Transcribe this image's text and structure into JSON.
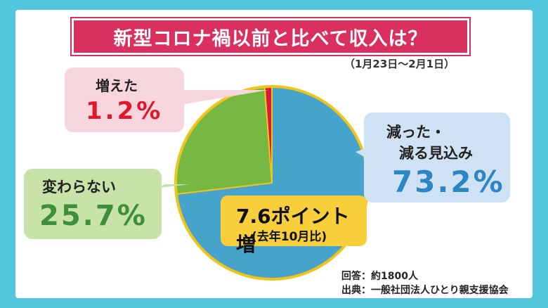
{
  "title": "新型コロナ禍以前と比べて収入は？",
  "period": "（1月23日〜2月1日）",
  "note": {
    "main": "7.6ポイント増",
    "sub": "(去年10月比)"
  },
  "footer": {
    "respondents": "回答：約1800人",
    "source": "出典：一般社団法人ひとり親支援協会"
  },
  "colors": {
    "decreased": "#46a4cc",
    "same": "#77b843",
    "increased": "#d8193a",
    "rim": "#f0c419"
  },
  "chart_data": {
    "type": "pie",
    "title": "新型コロナ禍以前と比べて収入は？",
    "categories": [
      "減った・減る見込み",
      "変わらない",
      "増えた"
    ],
    "values": [
      73.2,
      25.7,
      1.2
    ],
    "value_labels": [
      "73.2%",
      "25.7%",
      "1.2%"
    ],
    "labels": {
      "decreased_line1": "減った・",
      "decreased_line2": "減る見込み",
      "same": "変わらない",
      "increased": "増えた"
    }
  }
}
